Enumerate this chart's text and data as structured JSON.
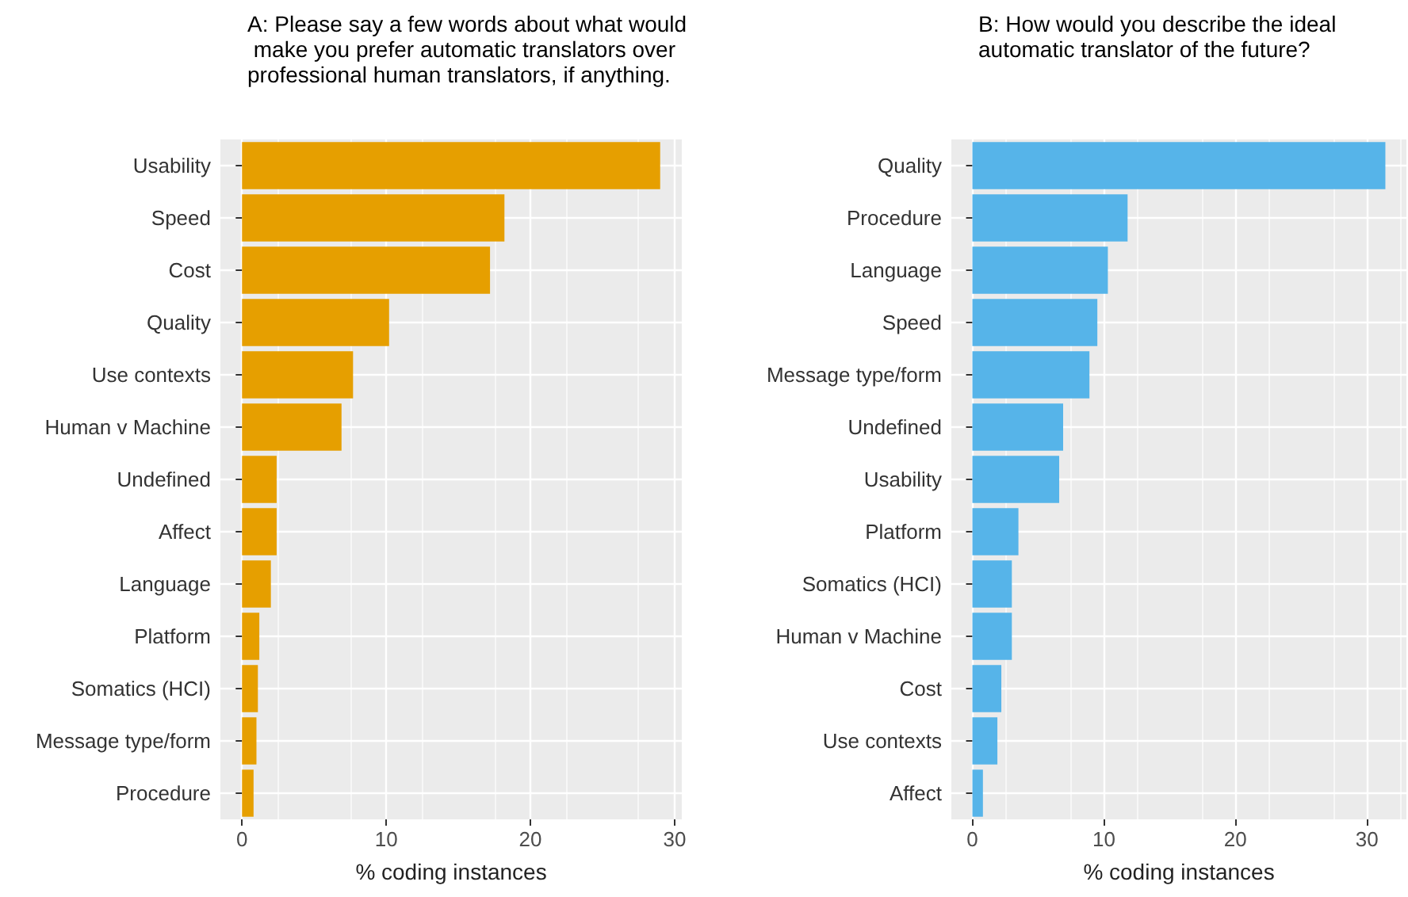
{
  "chart_data": [
    {
      "type": "bar",
      "orientation": "horizontal",
      "title": "A: Please say a few words about what would make you prefer automatic translators over professional human translators, if anything.",
      "xlabel": "% coding instances",
      "categories": [
        "Usability",
        "Speed",
        "Cost",
        "Quality",
        "Use contexts",
        "Human v Machine",
        "Undefined",
        "Affect",
        "Language",
        "Platform",
        "Somatics (HCI)",
        "Message type/form",
        "Procedure"
      ],
      "values": [
        29.0,
        18.2,
        17.2,
        10.2,
        7.7,
        6.9,
        2.4,
        2.4,
        2.0,
        1.2,
        1.1,
        1.0,
        0.8
      ],
      "color": "#e69f00",
      "xlim": [
        -1.5,
        30.5
      ],
      "xticks": [
        0,
        10,
        20,
        30
      ],
      "grid": true
    },
    {
      "type": "bar",
      "orientation": "horizontal",
      "title": "B: How would you describe the ideal automatic translator of the future?",
      "xlabel": "% coding instances",
      "categories": [
        "Quality",
        "Procedure",
        "Language",
        "Speed",
        "Message type/form",
        "Undefined",
        "Usability",
        "Platform",
        "Somatics (HCI)",
        "Human v Machine",
        "Cost",
        "Use contexts",
        "Affect"
      ],
      "values": [
        31.4,
        11.8,
        10.3,
        9.5,
        8.9,
        6.9,
        6.6,
        3.5,
        3.0,
        3.0,
        2.2,
        1.9,
        0.8
      ],
      "color": "#56b4e9",
      "xlim": [
        -1.6,
        33.0
      ],
      "xticks": [
        0,
        10,
        20,
        30
      ],
      "grid": true
    }
  ]
}
